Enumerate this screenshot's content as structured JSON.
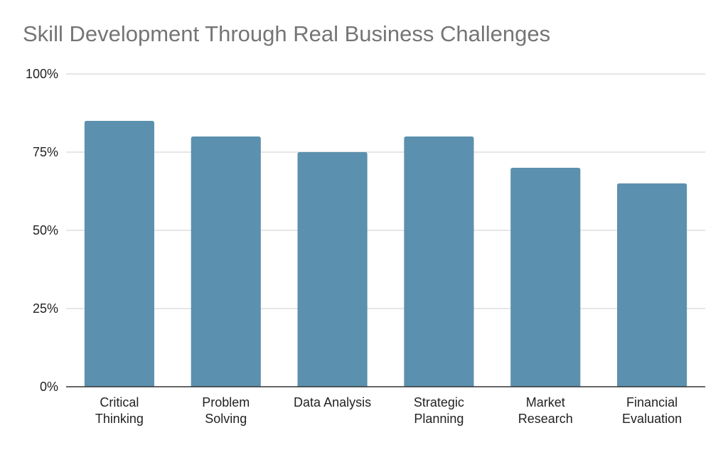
{
  "chart_data": {
    "type": "bar",
    "title": "Skill Development Through Real Business Challenges",
    "xlabel": "",
    "ylabel": "",
    "categories": [
      [
        "Critical",
        "Thinking"
      ],
      [
        "Problem",
        "Solving"
      ],
      [
        "Data Analysis"
      ],
      [
        "Strategic",
        "Planning"
      ],
      [
        "Market",
        "Research"
      ],
      [
        "Financial",
        "Evaluation"
      ]
    ],
    "values": [
      85,
      80,
      75,
      80,
      70,
      65
    ],
    "ylim": [
      0,
      100
    ],
    "yticks": [
      {
        "value": 0,
        "label": "0%"
      },
      {
        "value": 25,
        "label": "25%"
      },
      {
        "value": 50,
        "label": "50%"
      },
      {
        "value": 75,
        "label": "75%"
      },
      {
        "value": 100,
        "label": "100%"
      }
    ],
    "grid": true,
    "legend": "none",
    "bar_color": "#5b91ae",
    "grid_color": "#cccccc",
    "axis_color": "#333333"
  }
}
